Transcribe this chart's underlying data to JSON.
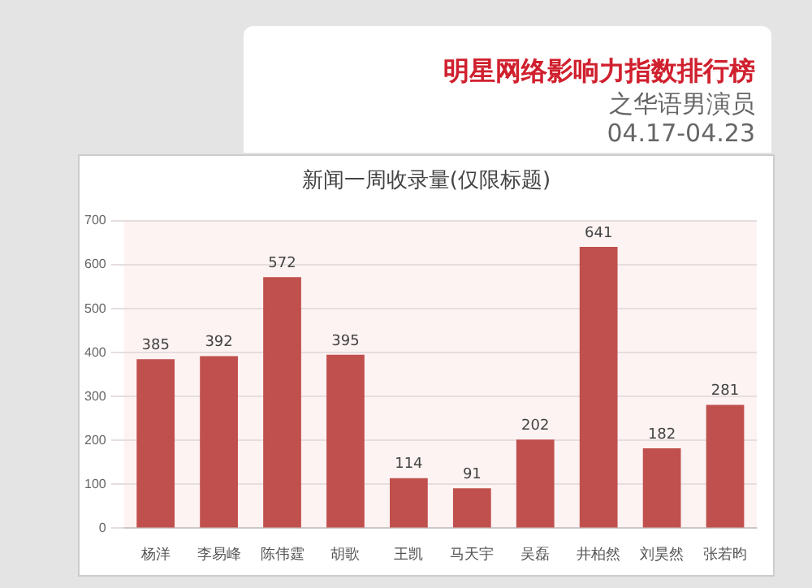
{
  "chart_data": {
    "type": "bar",
    "title": "明星网络影响力指数排行榜",
    "subtitle": "之华语男演员",
    "annotations": [
      "04.17-04.23",
      "新闻一周收录量(仅限标题)"
    ],
    "categories": [
      "杨洋",
      "李易峰",
      "陈伟霆",
      "胡歌",
      "王凯",
      "马天宇",
      "吴磊",
      "井柏然",
      "刘昊然",
      "张若昀"
    ],
    "values": [
      385,
      392,
      572,
      395,
      114,
      91,
      202,
      641,
      182,
      281
    ],
    "color": "#c0504d",
    "ylim": [
      0,
      700
    ],
    "yticks": [
      0,
      100,
      200,
      300,
      400,
      500,
      600,
      700
    ],
    "grid": "y",
    "data_labels": true,
    "legend": false
  }
}
